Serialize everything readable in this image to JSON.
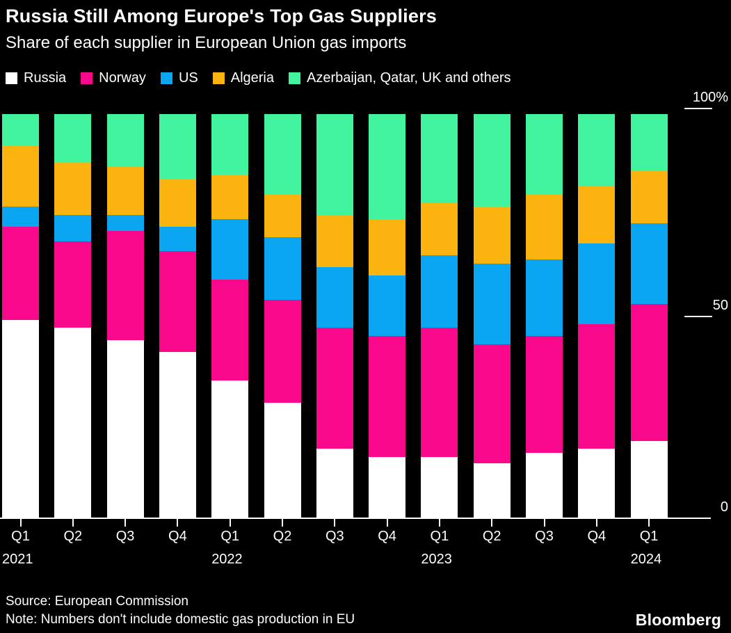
{
  "header": {
    "title": "Russia Still Among Europe's Top Gas Suppliers",
    "subtitle": "Share of each supplier in European Union gas imports"
  },
  "footer": {
    "source": "Source: European Commission",
    "note": "Note: Numbers don't include domestic gas production in EU",
    "brand": "Bloomberg"
  },
  "colors": {
    "background": "#000000",
    "text": "#FFFFFF",
    "axis": "#FFFFFF"
  },
  "chart_data": {
    "type": "bar",
    "stacked": true,
    "unit": "percent",
    "grid": false,
    "legend_position": "top",
    "yaxis": {
      "position": "right",
      "range": [
        0,
        100
      ],
      "ticks": [
        {
          "label": "100%",
          "value": 100
        },
        {
          "label": "50",
          "value": 50
        },
        {
          "label": "0",
          "value": 0
        }
      ]
    },
    "categories": [
      "Q1 2021",
      "Q2 2021",
      "Q3 2021",
      "Q4 2021",
      "Q1 2022",
      "Q2 2022",
      "Q3 2022",
      "Q4 2022",
      "Q1 2023",
      "Q2 2023",
      "Q3 2023",
      "Q4 2023",
      "Q1 2024"
    ],
    "x_tick_labels": [
      "Q1",
      "Q2",
      "Q3",
      "Q4",
      "Q1",
      "Q2",
      "Q3",
      "Q4",
      "Q1",
      "Q2",
      "Q3",
      "Q4",
      "Q1"
    ],
    "year_labels": [
      {
        "index": 0,
        "label": "2021"
      },
      {
        "index": 4,
        "label": "2022"
      },
      {
        "index": 8,
        "label": "2023"
      },
      {
        "index": 12,
        "label": "2024"
      }
    ],
    "stack_order_bottom_to_top": [
      "Russia",
      "Norway",
      "US",
      "Algeria",
      "Azerbaijan, Qatar, UK and others"
    ],
    "series": [
      {
        "name": "Russia",
        "color": "#FFFFFF",
        "values": [
          49,
          47,
          44,
          41,
          34,
          28.5,
          17,
          15,
          15,
          13.5,
          16,
          17,
          19
        ]
      },
      {
        "name": "Norway",
        "color": "#F9088C",
        "values": [
          23,
          21.5,
          27,
          25,
          25,
          25.5,
          30,
          30,
          32,
          29.5,
          29,
          31,
          34
        ]
      },
      {
        "name": "US",
        "color": "#0AA6F2",
        "values": [
          5,
          6.5,
          4,
          6,
          15,
          15.5,
          15,
          15,
          18,
          20,
          19,
          20,
          20
        ]
      },
      {
        "name": "Algeria",
        "color": "#FBB40F",
        "values": [
          15,
          13,
          12,
          12,
          11,
          10.5,
          13,
          14,
          13,
          14,
          16,
          14,
          13
        ]
      },
      {
        "name": "Azerbaijan, Qatar, UK and others",
        "color": "#42F39E",
        "values": [
          8,
          12,
          13,
          16,
          15,
          20,
          25,
          26,
          22,
          23,
          20,
          18,
          14
        ]
      }
    ]
  }
}
